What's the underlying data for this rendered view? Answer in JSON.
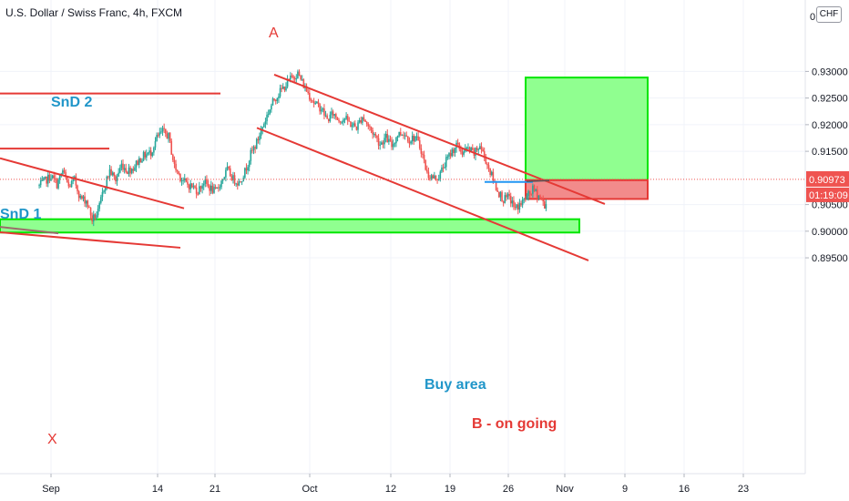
{
  "chart_data": {
    "type": "candlestick",
    "symbol_title": "U.S. Dollar / Swiss Franc, 4h, FXCM",
    "currency_badge": "CHF",
    "y_axis": {
      "ticks": [
        "0.93000",
        "0.92500",
        "0.92000",
        "0.91500",
        "0.90500",
        "0.90000",
        "0.89500"
      ],
      "tick_values": [
        0.93,
        0.925,
        0.92,
        0.915,
        0.905,
        0.9,
        0.895
      ],
      "top_cut_label": "0.9",
      "ylim": [
        0.8915,
        0.9343
      ]
    },
    "x_axis": {
      "ticks": [
        "Sep",
        "14",
        "21",
        "Oct",
        "12",
        "19",
        "26",
        "Nov",
        "9",
        "16",
        "23"
      ]
    },
    "last_price": {
      "label": "0.90973",
      "value": 0.90973,
      "color": "#ef5350"
    },
    "countdown": {
      "label": "01:19:09",
      "color": "#ef5350"
    },
    "colors": {
      "up": "#26a69a",
      "down": "#ef5350",
      "annotation_red": "#e53935",
      "annotation_blue": "#2196f3",
      "zone_green": "#00e600",
      "zone_green_fill": "#90ff90",
      "zone_red_fill": "#f28b8b"
    },
    "annotations": {
      "snd2": "SnD 2",
      "snd1": "SnD 1",
      "point_a": "A",
      "point_x": "X",
      "point_b": "B - on going",
      "buy_area": "Buy area"
    },
    "levels": {
      "snd2": 0.92585,
      "snd1": 0.9155,
      "entry": 0.90958,
      "take_profit": 0.92885,
      "stop_loss": 0.90605,
      "buy_area_high": 0.90225,
      "buy_area_low": 0.89975
    },
    "price_path": [
      [
        -2,
        0.9085
      ],
      [
        0,
        0.9104
      ],
      [
        1,
        0.9088
      ],
      [
        2,
        0.9113
      ],
      [
        3,
        0.9083
      ],
      [
        4,
        0.9096
      ],
      [
        5,
        0.9062
      ],
      [
        6,
        0.9058
      ],
      [
        7,
        0.9022
      ],
      [
        8,
        0.9035
      ],
      [
        9,
        0.9081
      ],
      [
        10,
        0.9114
      ],
      [
        11,
        0.9096
      ],
      [
        12,
        0.9125
      ],
      [
        13,
        0.9114
      ],
      [
        14,
        0.9119
      ],
      [
        15,
        0.9134
      ],
      [
        16,
        0.9143
      ],
      [
        17,
        0.9148
      ],
      [
        18,
        0.9175
      ],
      [
        19,
        0.9187
      ],
      [
        20,
        0.9178
      ],
      [
        21,
        0.9122
      ],
      [
        22,
        0.9102
      ],
      [
        23,
        0.9089
      ],
      [
        24,
        0.9084
      ],
      [
        25,
        0.9076
      ],
      [
        26,
        0.9093
      ],
      [
        27,
        0.9082
      ],
      [
        28,
        0.9073
      ],
      [
        29,
        0.9094
      ],
      [
        30,
        0.9115
      ],
      [
        31,
        0.9098
      ],
      [
        32,
        0.9091
      ],
      [
        33,
        0.9112
      ],
      [
        34,
        0.9145
      ],
      [
        35,
        0.9166
      ],
      [
        36,
        0.9196
      ],
      [
        37,
        0.9224
      ],
      [
        38,
        0.9248
      ],
      [
        39,
        0.9262
      ],
      [
        40,
        0.9275
      ],
      [
        41,
        0.9289
      ],
      [
        42,
        0.9296
      ],
      [
        43,
        0.9274
      ],
      [
        44,
        0.9255
      ],
      [
        45,
        0.9238
      ],
      [
        46,
        0.9231
      ],
      [
        47,
        0.9209
      ],
      [
        48,
        0.9221
      ],
      [
        49,
        0.9209
      ],
      [
        50,
        0.9212
      ],
      [
        51,
        0.9201
      ],
      [
        52,
        0.9195
      ],
      [
        53,
        0.9216
      ],
      [
        54,
        0.9197
      ],
      [
        55,
        0.9182
      ],
      [
        56,
        0.9164
      ],
      [
        57,
        0.9176
      ],
      [
        58,
        0.916
      ],
      [
        59,
        0.9182
      ],
      [
        60,
        0.9185
      ],
      [
        61,
        0.9172
      ],
      [
        62,
        0.9177
      ],
      [
        63,
        0.9153
      ],
      [
        64,
        0.9108
      ],
      [
        65,
        0.91
      ],
      [
        66,
        0.9102
      ],
      [
        67,
        0.9127
      ],
      [
        68,
        0.9146
      ],
      [
        69,
        0.9162
      ],
      [
        70,
        0.9148
      ],
      [
        71,
        0.9154
      ],
      [
        72,
        0.9145
      ],
      [
        73,
        0.9161
      ],
      [
        74,
        0.9133
      ],
      [
        75,
        0.9104
      ],
      [
        76,
        0.9076
      ],
      [
        77,
        0.9059
      ],
      [
        78,
        0.9063
      ],
      [
        79,
        0.9042
      ],
      [
        80,
        0.9052
      ],
      [
        81,
        0.9064
      ],
      [
        82,
        0.9078
      ],
      [
        83,
        0.9067
      ],
      [
        84,
        0.9049
      ],
      [
        85,
        0.9058
      ],
      [
        86,
        0.9068
      ],
      [
        87,
        0.9076
      ],
      [
        88,
        0.9091
      ],
      [
        89,
        0.9112
      ],
      [
        90,
        0.9106
      ],
      [
        91,
        0.9097
      ]
    ],
    "title": "",
    "xlabel": "",
    "ylabel": ""
  }
}
